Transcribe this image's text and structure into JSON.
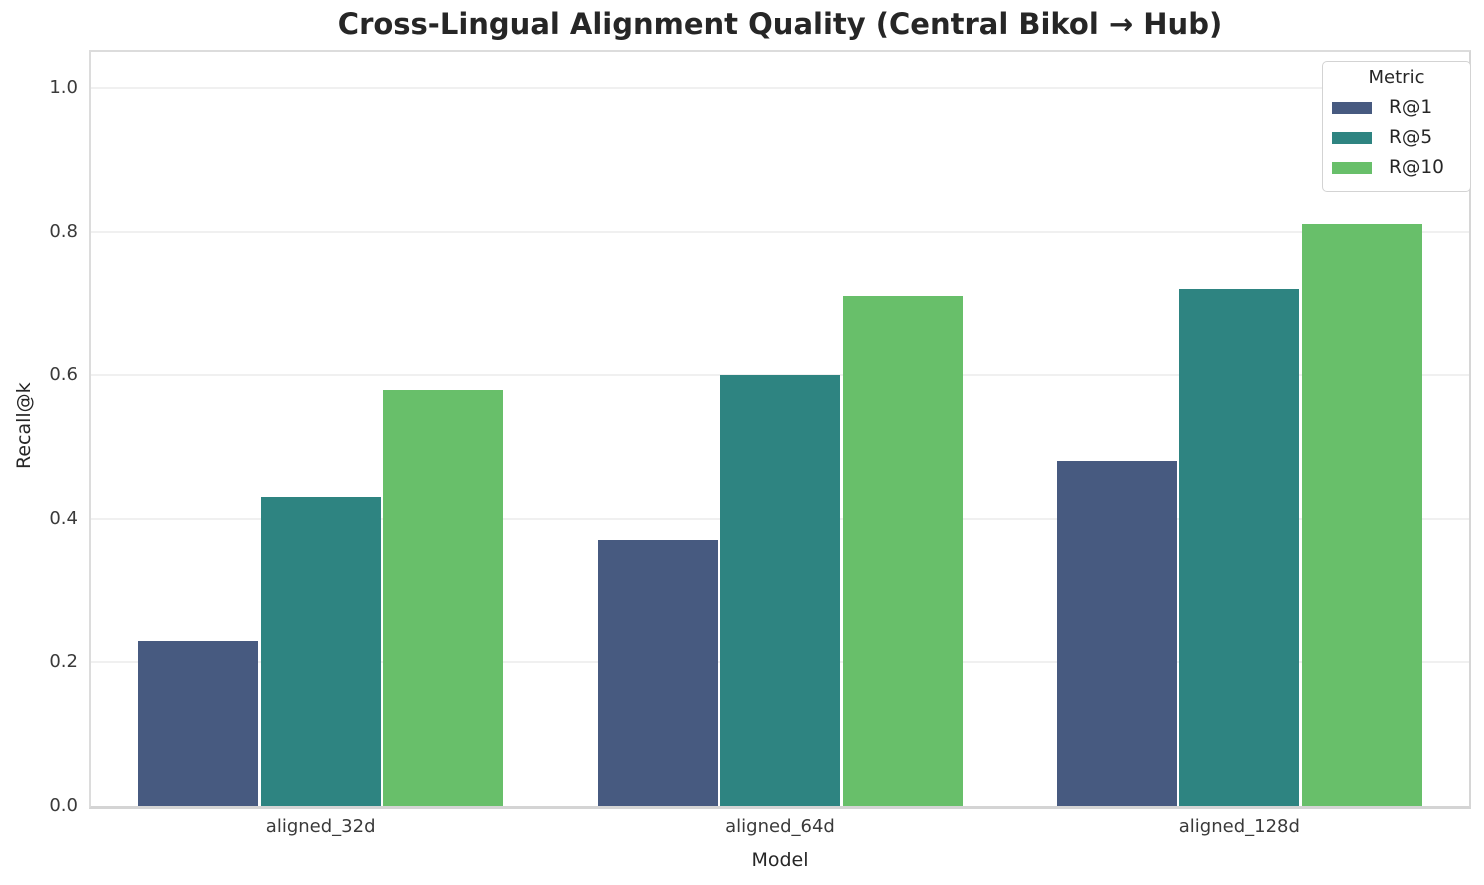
{
  "chart_data": {
    "type": "bar",
    "title": "Cross-Lingual Alignment Quality (Central Bikol → Hub)",
    "xlabel": "Model",
    "ylabel": "Recall@k",
    "categories": [
      "aligned_32d",
      "aligned_64d",
      "aligned_128d"
    ],
    "series": [
      {
        "name": "R@1",
        "color": "#475a80",
        "values": [
          0.23,
          0.37,
          0.48
        ]
      },
      {
        "name": "R@5",
        "color": "#2e8481",
        "values": [
          0.43,
          0.6,
          0.72
        ]
      },
      {
        "name": "R@10",
        "color": "#68bf6a",
        "values": [
          0.58,
          0.71,
          0.81
        ]
      }
    ],
    "ylim": [
      0,
      1.05
    ],
    "yticks": [
      0.0,
      0.2,
      0.4,
      0.6,
      0.8,
      1.0
    ],
    "grid": true,
    "legend": {
      "title": "Metric",
      "position": "upper right"
    }
  }
}
